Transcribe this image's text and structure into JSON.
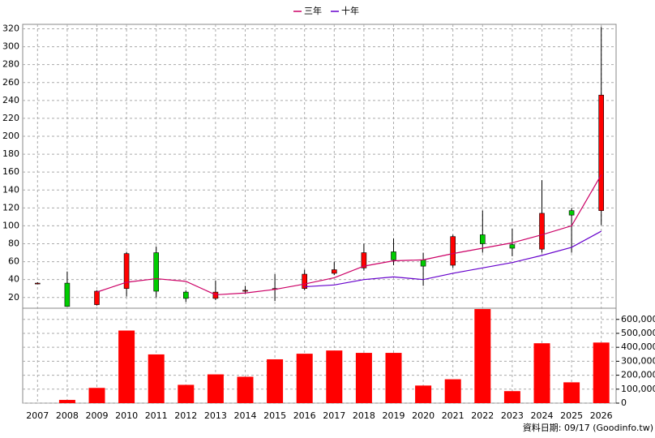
{
  "chart_data": {
    "type": "candlestick",
    "categories": [
      "2007",
      "2008",
      "2009",
      "2010",
      "2011",
      "2012",
      "2013",
      "2014",
      "2015",
      "2016",
      "2017",
      "2018",
      "2019",
      "2020",
      "2021",
      "2022",
      "2023",
      "2024",
      "2025",
      "2026"
    ],
    "open": [
      36,
      36,
      12,
      30,
      70,
      26,
      19,
      27,
      29,
      30,
      47,
      53,
      71,
      62,
      56,
      90,
      79,
      74,
      117,
      117
    ],
    "high": [
      37,
      49,
      28,
      71,
      77,
      28,
      39,
      33,
      46,
      51,
      60,
      80,
      86,
      70,
      90,
      117,
      97,
      151,
      120,
      322
    ],
    "low": [
      35,
      10,
      11,
      21,
      20,
      15,
      17,
      24,
      16,
      28,
      45,
      50,
      56,
      33,
      53,
      70,
      66,
      70,
      70,
      101
    ],
    "close": [
      36,
      10,
      27,
      69,
      27,
      19,
      26,
      28,
      30,
      46,
      51,
      70,
      62,
      55,
      88,
      80,
      75,
      114,
      112,
      246
    ],
    "up_color": "#ff0000",
    "down_color": "#00cc00",
    "series": [
      {
        "name": "三年",
        "color": "#cc0066",
        "values": [
          null,
          null,
          26,
          37,
          41,
          38,
          23,
          25,
          29,
          35,
          42,
          55,
          61,
          62,
          69,
          75,
          81,
          90,
          100,
          157
        ]
      },
      {
        "name": "十年",
        "color": "#6600cc",
        "values": [
          null,
          null,
          null,
          null,
          null,
          null,
          null,
          null,
          null,
          32,
          34,
          40,
          43,
          40,
          47,
          53,
          59,
          67,
          76,
          94
        ]
      }
    ],
    "ylim": [
      8,
      325
    ],
    "yticks": [
      20,
      40,
      60,
      80,
      100,
      120,
      140,
      160,
      180,
      200,
      220,
      240,
      260,
      280,
      300,
      320
    ],
    "volume": {
      "axis": "y2",
      "color": "#ff0000",
      "values": [
        0,
        23000,
        109000,
        520000,
        349000,
        131000,
        206000,
        189000,
        314000,
        354000,
        377000,
        360000,
        360000,
        126000,
        171000,
        674000,
        86000,
        429000,
        149000,
        434000
      ]
    },
    "y2lim": [
      0,
      680000
    ],
    "y2ticks": [
      0,
      {
        "value": 100000,
        "label": "100,000"
      },
      {
        "value": 200000,
        "label": "200,000"
      },
      {
        "value": 300000,
        "label": "300,000"
      },
      {
        "value": 400000,
        "label": "400,000"
      },
      {
        "value": 500000,
        "label": "500,000"
      },
      {
        "value": 600000,
        "label": "600,000"
      }
    ],
    "grid": true,
    "legend": "top",
    "source_note": "資料日期: 09/17 (Goodinfo.tw)"
  }
}
